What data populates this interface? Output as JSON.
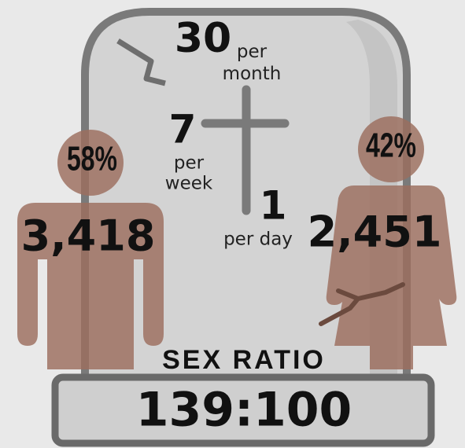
{
  "frequency": {
    "month": {
      "number": "30",
      "label": "per month"
    },
    "week": {
      "number": "7",
      "label_lines": [
        "per",
        "week"
      ]
    },
    "day": {
      "number": "1",
      "label": "per day"
    }
  },
  "male": {
    "percent": "58%",
    "count": "3,418"
  },
  "female": {
    "percent": "42%",
    "count": "2,451"
  },
  "sex_ratio": {
    "label": "SEX RATIO",
    "value": "139:100"
  }
}
